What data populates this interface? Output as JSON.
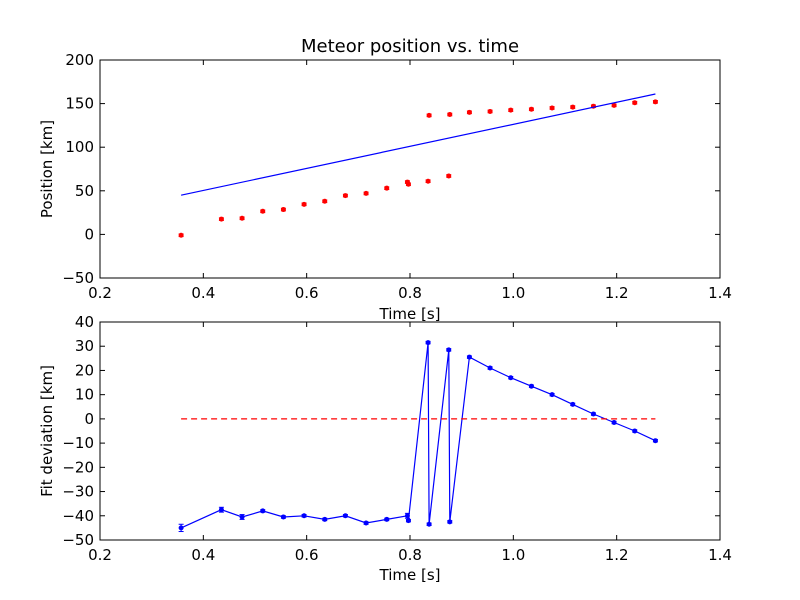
{
  "chart_data": [
    {
      "type": "scatter",
      "title": "Meteor position vs. time",
      "xlabel": "Time [s]",
      "ylabel": "Position [km]",
      "xlim": [
        0.2,
        1.4
      ],
      "ylim": [
        -50,
        200
      ],
      "xticks": [
        "0.2",
        "0.4",
        "0.6",
        "0.8",
        "1.0",
        "1.2",
        "1.4"
      ],
      "yticks": [
        "−50",
        "0",
        "50",
        "100",
        "150",
        "200"
      ],
      "xtick_values": [
        0.2,
        0.4,
        0.6,
        0.8,
        1.0,
        1.2,
        1.4
      ],
      "ytick_values": [
        -50,
        0,
        50,
        100,
        150,
        200
      ],
      "grid": false,
      "series": [
        {
          "style": "points-with-errorbars",
          "color": "#ff0000",
          "x": [
            0.357,
            0.435,
            0.475,
            0.515,
            0.555,
            0.595,
            0.635,
            0.675,
            0.715,
            0.755,
            0.795,
            0.797,
            0.835,
            0.837,
            0.875,
            0.877,
            0.915,
            0.955,
            0.995,
            1.035,
            1.075,
            1.115,
            1.155,
            1.195,
            1.235,
            1.275
          ],
          "y": [
            -1,
            17.5,
            18.5,
            26.5,
            28.5,
            34.5,
            38,
            44.5,
            47,
            53,
            60,
            57.5,
            61,
            136.5,
            67,
            137.5,
            140,
            141,
            142.5,
            143.5,
            145,
            146,
            147,
            148,
            151,
            152
          ],
          "yerr": [
            1.5,
            1.5,
            1.5,
            1.5,
            1.5,
            1.5,
            1.5,
            1.5,
            1.5,
            1.5,
            1.5,
            1.5,
            1.5,
            1.5,
            1.5,
            1.5,
            1.5,
            1.5,
            1.5,
            1.5,
            1.5,
            1.5,
            1.5,
            1.5,
            1.5,
            1.5
          ]
        },
        {
          "style": "line",
          "color": "#0000ff",
          "x": [
            0.357,
            1.275
          ],
          "y": [
            45,
            161
          ]
        }
      ]
    },
    {
      "type": "line",
      "title": "",
      "xlabel": "Time [s]",
      "ylabel": "Fit deviation [km]",
      "xlim": [
        0.2,
        1.4
      ],
      "ylim": [
        -50,
        40
      ],
      "xticks": [
        "0.2",
        "0.4",
        "0.6",
        "0.8",
        "1.0",
        "1.2",
        "1.4"
      ],
      "yticks": [
        "−50",
        "−40",
        "−30",
        "−20",
        "−10",
        "0",
        "10",
        "20",
        "30",
        "40"
      ],
      "xtick_values": [
        0.2,
        0.4,
        0.6,
        0.8,
        1.0,
        1.2,
        1.4
      ],
      "ytick_values": [
        -50,
        -40,
        -30,
        -20,
        -10,
        0,
        10,
        20,
        30,
        40
      ],
      "grid": false,
      "series": [
        {
          "style": "line-with-errorbars",
          "color": "#0000ff",
          "x": [
            0.357,
            0.435,
            0.475,
            0.515,
            0.555,
            0.595,
            0.635,
            0.675,
            0.715,
            0.755,
            0.795,
            0.797,
            0.835,
            0.837,
            0.875,
            0.877,
            0.915,
            0.955,
            0.995,
            1.035,
            1.075,
            1.115,
            1.155,
            1.195,
            1.235,
            1.275
          ],
          "y": [
            -45,
            -37.5,
            -40.5,
            -38,
            -40.5,
            -40,
            -41.5,
            -40,
            -43,
            -41.5,
            -40,
            -42,
            31.5,
            -43.5,
            28.5,
            -42.5,
            25.5,
            21,
            17,
            13.5,
            10,
            6,
            2,
            -1.5,
            -5,
            -9
          ],
          "yerr": [
            1.5,
            1,
            1,
            0.5,
            0.5,
            0.5,
            0.5,
            0.5,
            0.5,
            0.5,
            1,
            0.5,
            0.5,
            0.5,
            0.5,
            0.5,
            0.5,
            0.5,
            0.5,
            0.5,
            0.5,
            0.5,
            0.5,
            0.5,
            0.5,
            0.5
          ]
        },
        {
          "style": "dashed-line",
          "color": "#ff0000",
          "x": [
            0.357,
            1.275
          ],
          "y": [
            0,
            0
          ]
        }
      ]
    }
  ]
}
